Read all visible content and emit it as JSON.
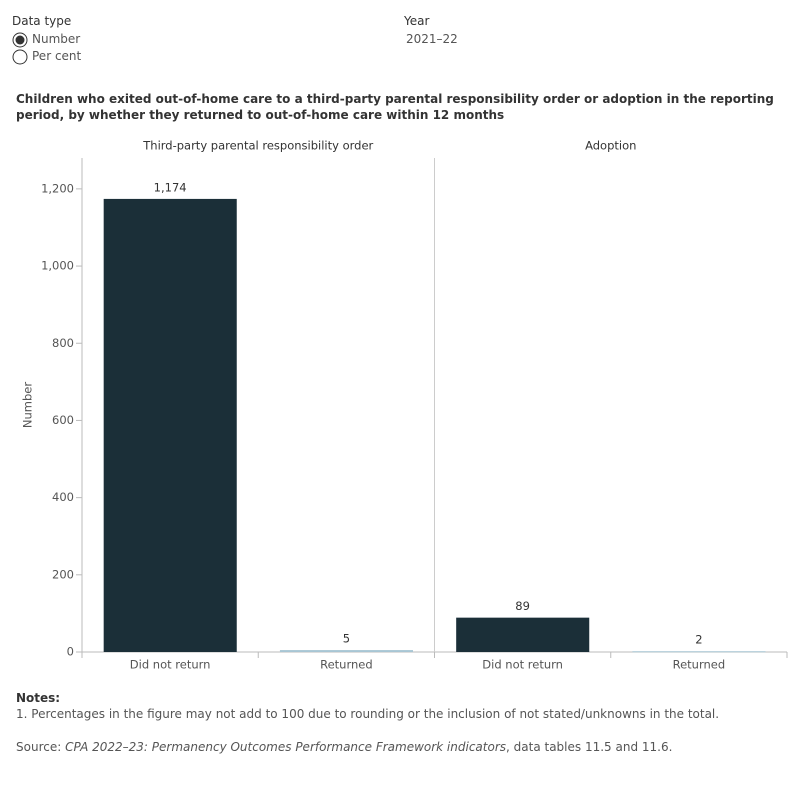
{
  "controls": {
    "data_type_label": "Data type",
    "options": [
      "Number",
      "Per cent"
    ],
    "selected": 0,
    "year_label": "Year",
    "year": "2021–22"
  },
  "chart_data": {
    "type": "bar",
    "title": "Children who exited out-of-home care to a third-party parental responsibility order or adoption in the reporting period, by whether they returned to out-of-home care within 12 months",
    "y_label": "Number",
    "ylim": [
      0,
      1280
    ],
    "yticks": [
      0,
      200,
      400,
      600,
      800,
      {
        "value": 1000,
        "label": "1,000"
      },
      {
        "value": 1200,
        "label": "1,200"
      }
    ],
    "colors": [
      "#1b2f38",
      "#a8c6d4"
    ],
    "panels": [
      {
        "title": "Third-party parental responsibility order",
        "categories": [
          "Did not return",
          "Returned"
        ],
        "values": [
          1174,
          5
        ],
        "value_labels": [
          "1,174",
          "5"
        ]
      },
      {
        "title": "Adoption",
        "categories": [
          "Did not return",
          "Returned"
        ],
        "values": [
          89,
          2
        ],
        "value_labels": [
          "89",
          "2"
        ]
      }
    ]
  },
  "notes": {
    "heading": "Notes:",
    "items": [
      "1. Percentages in the figure may not add to 100 due to rounding or the inclusion of not stated/unknowns in the total."
    ]
  },
  "source": {
    "prefix": "Source: ",
    "title": "CPA 2022–23: Permanency Outcomes Performance Framework indicators",
    "suffix": ", data tables 11.5 and 11.6."
  }
}
